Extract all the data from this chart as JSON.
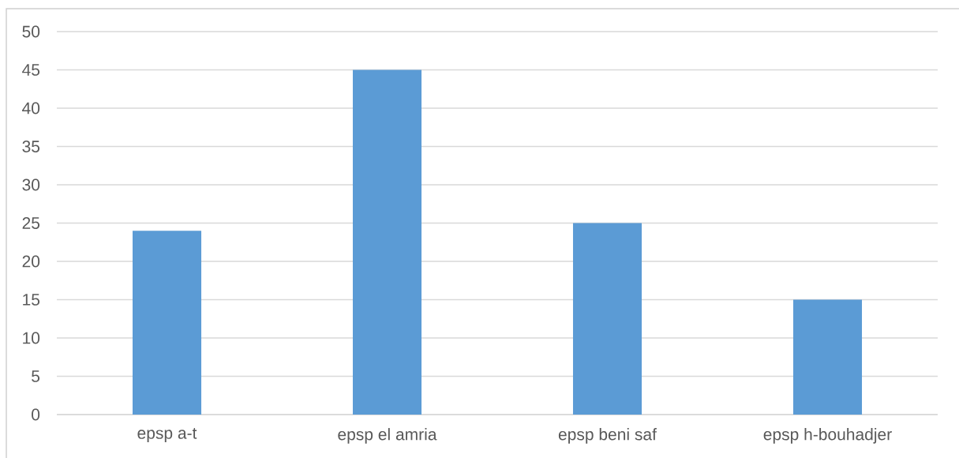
{
  "chart_data": {
    "type": "bar",
    "categories": [
      "epsp a-t",
      "epsp el amria",
      "epsp beni saf",
      "epsp h-bouhadjer"
    ],
    "values": [
      24,
      45,
      25,
      15
    ],
    "color": "#5b9bd5",
    "ylim": [
      0,
      50
    ],
    "yticks": [
      0,
      5,
      10,
      15,
      20,
      25,
      30,
      35,
      40,
      45,
      50
    ],
    "grid": "y"
  }
}
